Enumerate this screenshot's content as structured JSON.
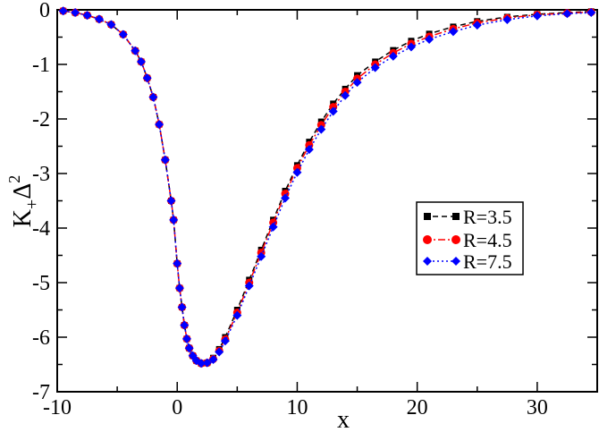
{
  "chart_data": {
    "type": "line",
    "title": "",
    "xlabel": "x",
    "ylabel": {
      "base": "K",
      "sub": "+",
      "delta": "Δ",
      "sup": "2"
    },
    "xlim": [
      -10,
      35
    ],
    "ylim": [
      -7,
      0
    ],
    "xticks": [
      -10,
      0,
      10,
      20,
      30
    ],
    "yticks": [
      0,
      -1,
      -2,
      -3,
      -4,
      -5,
      -6,
      -7
    ],
    "xtick_labels": [
      "-10",
      "0",
      "10",
      "20",
      "30"
    ],
    "ytick_labels": [
      "0",
      "-1",
      "-2",
      "-3",
      "-4",
      "-5",
      "-6",
      "-7"
    ],
    "grid": false,
    "legend_position": "right",
    "series": [
      {
        "name": "R=3.5",
        "color": "#000000",
        "marker": "square",
        "line": "dashed",
        "x": [
          -9.5,
          -8.5,
          -7.5,
          -6.5,
          -5.5,
          -4.5,
          -3.5,
          -3.0,
          -2.5,
          -2.0,
          -1.5,
          -1.0,
          -0.5,
          -0.3,
          0.0,
          0.2,
          0.4,
          0.6,
          0.8,
          1.0,
          1.3,
          1.6,
          2.0,
          2.5,
          3.0,
          3.5,
          4.0,
          5.0,
          6.0,
          7.0,
          8.0,
          9.0,
          10.0,
          11.0,
          12.0,
          13.0,
          14.0,
          15.0,
          16.5,
          18.0,
          19.5,
          21.0,
          23.0,
          25.0,
          27.5,
          30.0,
          32.5,
          34.5
        ],
        "y": [
          -0.02,
          -0.05,
          -0.1,
          -0.17,
          -0.27,
          -0.45,
          -0.75,
          -0.95,
          -1.25,
          -1.6,
          -2.1,
          -2.75,
          -3.5,
          -3.85,
          -4.65,
          -5.1,
          -5.45,
          -5.78,
          -6.03,
          -6.2,
          -6.34,
          -6.43,
          -6.48,
          -6.47,
          -6.38,
          -6.22,
          -6.0,
          -5.5,
          -4.95,
          -4.4,
          -3.85,
          -3.32,
          -2.85,
          -2.42,
          -2.05,
          -1.72,
          -1.45,
          -1.2,
          -0.95,
          -0.74,
          -0.57,
          -0.44,
          -0.31,
          -0.21,
          -0.13,
          -0.08,
          -0.05,
          -0.03
        ]
      },
      {
        "name": "R=4.5",
        "color": "#ff0000",
        "marker": "circle",
        "line": "dashdot",
        "x": [
          -9.5,
          -8.5,
          -7.5,
          -6.5,
          -5.5,
          -4.5,
          -3.5,
          -3.0,
          -2.5,
          -2.0,
          -1.5,
          -1.0,
          -0.5,
          -0.3,
          0.0,
          0.2,
          0.4,
          0.6,
          0.8,
          1.0,
          1.3,
          1.6,
          2.0,
          2.5,
          3.0,
          3.5,
          4.0,
          5.0,
          6.0,
          7.0,
          8.0,
          9.0,
          10.0,
          11.0,
          12.0,
          13.0,
          14.0,
          15.0,
          16.5,
          18.0,
          19.5,
          21.0,
          23.0,
          25.0,
          27.5,
          30.0,
          32.5,
          34.5
        ],
        "y": [
          -0.02,
          -0.05,
          -0.1,
          -0.17,
          -0.27,
          -0.45,
          -0.75,
          -0.95,
          -1.25,
          -1.6,
          -2.1,
          -2.75,
          -3.5,
          -3.85,
          -4.65,
          -5.1,
          -5.45,
          -5.78,
          -6.03,
          -6.2,
          -6.34,
          -6.43,
          -6.48,
          -6.47,
          -6.4,
          -6.25,
          -6.04,
          -5.55,
          -5.0,
          -4.45,
          -3.9,
          -3.37,
          -2.9,
          -2.48,
          -2.11,
          -1.78,
          -1.5,
          -1.26,
          -1.0,
          -0.79,
          -0.62,
          -0.49,
          -0.35,
          -0.24,
          -0.15,
          -0.09,
          -0.06,
          -0.04
        ]
      },
      {
        "name": "R=7.5",
        "color": "#0000ff",
        "marker": "diamond",
        "line": "dotted",
        "x": [
          -9.5,
          -8.5,
          -7.5,
          -6.5,
          -5.5,
          -4.5,
          -3.5,
          -3.0,
          -2.5,
          -2.0,
          -1.5,
          -1.0,
          -0.5,
          -0.3,
          0.0,
          0.2,
          0.4,
          0.6,
          0.8,
          1.0,
          1.3,
          1.6,
          2.0,
          2.5,
          3.0,
          3.5,
          4.0,
          5.0,
          6.0,
          7.0,
          8.0,
          9.0,
          10.0,
          11.0,
          12.0,
          13.0,
          14.0,
          15.0,
          16.5,
          18.0,
          19.5,
          21.0,
          23.0,
          25.0,
          27.5,
          30.0,
          32.5,
          34.5
        ],
        "y": [
          -0.02,
          -0.05,
          -0.1,
          -0.17,
          -0.27,
          -0.45,
          -0.75,
          -0.95,
          -1.25,
          -1.6,
          -2.1,
          -2.75,
          -3.5,
          -3.85,
          -4.65,
          -5.1,
          -5.45,
          -5.78,
          -6.03,
          -6.2,
          -6.34,
          -6.43,
          -6.48,
          -6.47,
          -6.41,
          -6.27,
          -6.07,
          -5.6,
          -5.06,
          -4.52,
          -3.98,
          -3.45,
          -2.98,
          -2.56,
          -2.19,
          -1.86,
          -1.57,
          -1.33,
          -1.06,
          -0.85,
          -0.68,
          -0.54,
          -0.4,
          -0.28,
          -0.18,
          -0.11,
          -0.07,
          -0.05
        ]
      }
    ]
  }
}
